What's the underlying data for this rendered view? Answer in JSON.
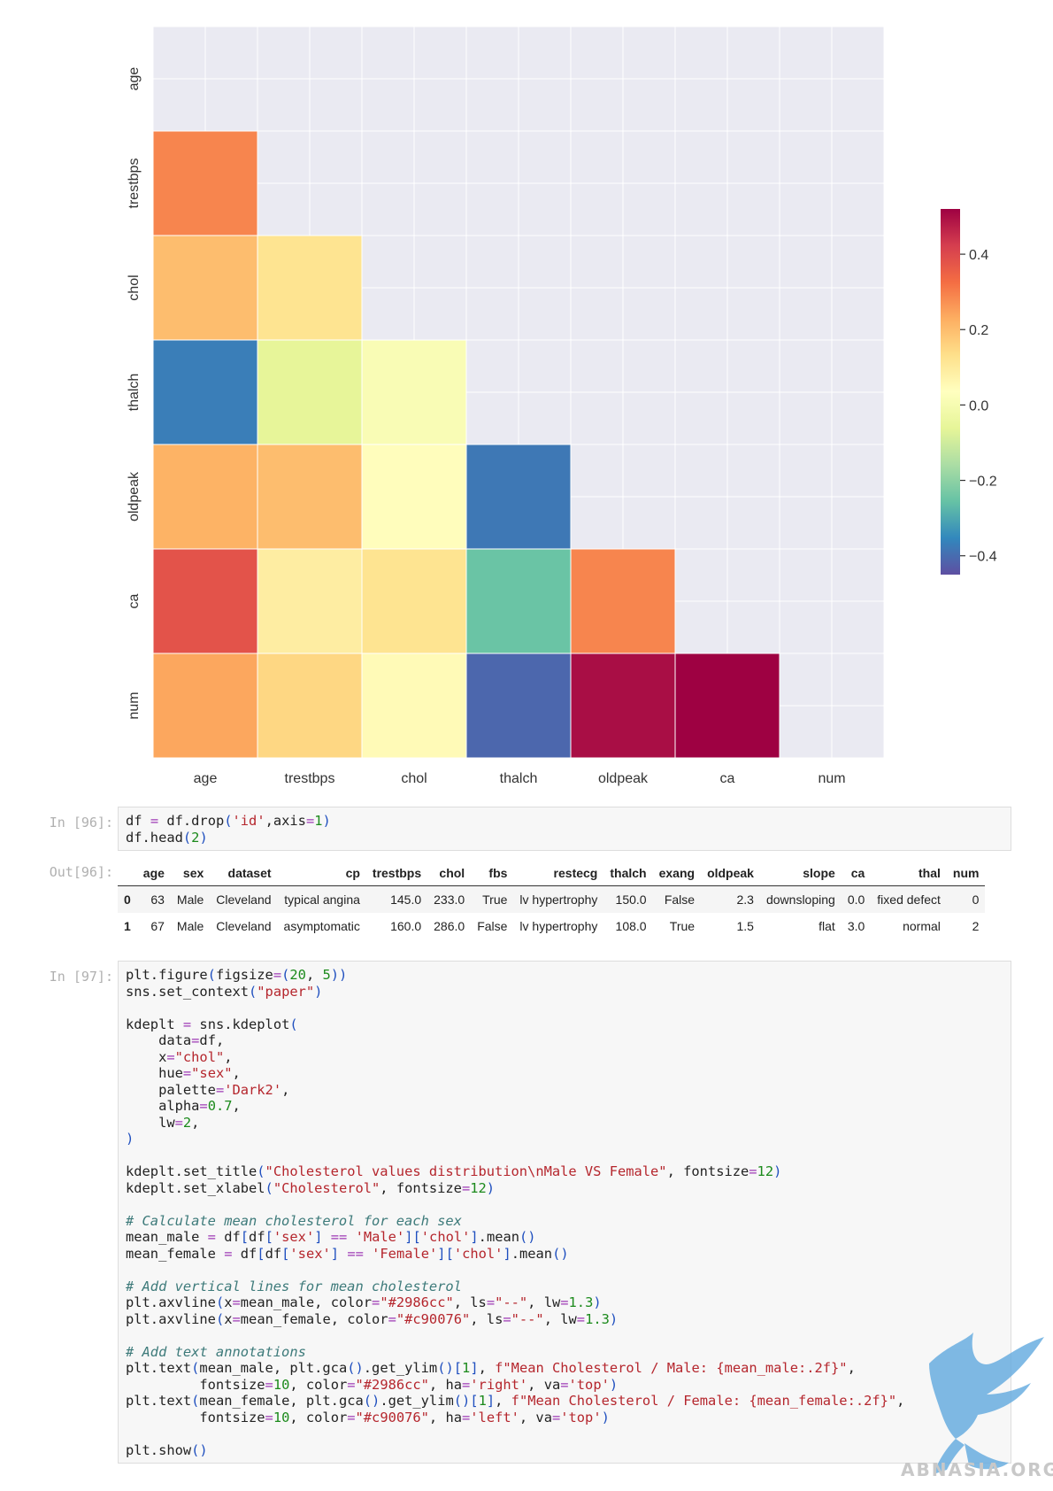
{
  "chart_data": {
    "type": "heatmap",
    "variables": [
      "age",
      "trestbps",
      "chol",
      "thalch",
      "oldpeak",
      "ca",
      "num"
    ],
    "mask": "upper-triangle-including-diagonal",
    "colormap": "Spectral",
    "vmin": -0.45,
    "vmax": 0.52,
    "colorbar_ticks": [
      "0.4",
      "0.2",
      "0.0",
      "−0.2",
      "−0.4"
    ],
    "colorbar_tick_values": [
      0.4,
      0.2,
      0.0,
      -0.2,
      -0.4
    ],
    "grid": true,
    "values": [
      {
        "row": "trestbps",
        "col": "age",
        "value": 0.29
      },
      {
        "row": "chol",
        "col": "age",
        "value": 0.2
      },
      {
        "row": "chol",
        "col": "trestbps",
        "value": 0.12
      },
      {
        "row": "thalch",
        "col": "age",
        "value": -0.37
      },
      {
        "row": "thalch",
        "col": "trestbps",
        "value": -0.06
      },
      {
        "row": "thalch",
        "col": "chol",
        "value": 0.01
      },
      {
        "row": "oldpeak",
        "col": "age",
        "value": 0.22
      },
      {
        "row": "oldpeak",
        "col": "trestbps",
        "value": 0.2
      },
      {
        "row": "oldpeak",
        "col": "chol",
        "value": 0.04
      },
      {
        "row": "oldpeak",
        "col": "thalch",
        "value": -0.38
      },
      {
        "row": "ca",
        "col": "age",
        "value": 0.38
      },
      {
        "row": "ca",
        "col": "trestbps",
        "value": 0.09
      },
      {
        "row": "ca",
        "col": "chol",
        "value": 0.12
      },
      {
        "row": "ca",
        "col": "thalch",
        "value": -0.25
      },
      {
        "row": "ca",
        "col": "oldpeak",
        "value": 0.29
      },
      {
        "row": "num",
        "col": "age",
        "value": 0.24
      },
      {
        "row": "num",
        "col": "trestbps",
        "value": 0.15
      },
      {
        "row": "num",
        "col": "chol",
        "value": 0.05
      },
      {
        "row": "num",
        "col": "thalch",
        "value": -0.41
      },
      {
        "row": "num",
        "col": "oldpeak",
        "value": 0.5
      },
      {
        "row": "num",
        "col": "ca",
        "value": 0.52
      }
    ]
  },
  "cells": {
    "in96": {
      "prompt": "In [96]:",
      "lines": [
        "df = df.drop('id',axis=1)",
        "df.head(2)"
      ]
    },
    "out96": {
      "prompt": "Out[96]:",
      "columns": [
        "",
        "age",
        "sex",
        "dataset",
        "cp",
        "trestbps",
        "chol",
        "fbs",
        "restecg",
        "thalch",
        "exang",
        "oldpeak",
        "slope",
        "ca",
        "thal",
        "num"
      ],
      "rows": [
        [
          "0",
          "63",
          "Male",
          "Cleveland",
          "typical angina",
          "145.0",
          "233.0",
          "True",
          "lv hypertrophy",
          "150.0",
          "False",
          "2.3",
          "downsloping",
          "0.0",
          "fixed defect",
          "0"
        ],
        [
          "1",
          "67",
          "Male",
          "Cleveland",
          "asymptomatic",
          "160.0",
          "286.0",
          "False",
          "lv hypertrophy",
          "108.0",
          "True",
          "1.5",
          "flat",
          "3.0",
          "normal",
          "2"
        ]
      ]
    },
    "in97": {
      "prompt": "In [97]:",
      "lines": [
        "plt.figure(figsize=(20, 5))",
        "sns.set_context(\"paper\")",
        "",
        "kdeplt = sns.kdeplot(",
        "    data=df,",
        "    x=\"chol\",",
        "    hue=\"sex\",",
        "    palette='Dark2',",
        "    alpha=0.7,",
        "    lw=2,",
        ")",
        "",
        "kdeplt.set_title(\"Cholesterol values distribution\\nMale VS Female\", fontsize=12)",
        "kdeplt.set_xlabel(\"Cholesterol\", fontsize=12)",
        "",
        "# Calculate mean cholesterol for each sex",
        "mean_male = df[df['sex'] == 'Male']['chol'].mean()",
        "mean_female = df[df['sex'] == 'Female']['chol'].mean()",
        "",
        "# Add vertical lines for mean cholesterol",
        "plt.axvline(x=mean_male, color=\"#2986cc\", ls=\"--\", lw=1.3)",
        "plt.axvline(x=mean_female, color=\"#c90076\", ls=\"--\", lw=1.3)",
        "",
        "# Add text annotations",
        "plt.text(mean_male, plt.gca().get_ylim()[1], f\"Mean Cholesterol / Male: {mean_male:.2f}\",",
        "         fontsize=10, color=\"#2986cc\", ha='right', va='top')",
        "plt.text(mean_female, plt.gca().get_ylim()[1], f\"Mean Cholesterol / Female: {mean_female:.2f}\",",
        "         fontsize=10, color=\"#c90076\", ha='left', va='top')",
        "",
        "plt.show()"
      ]
    }
  },
  "watermark": {
    "text": "ABNASIA.ORG",
    "icon": "griffin-logo"
  }
}
